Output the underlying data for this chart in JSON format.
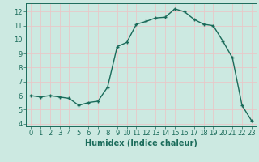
{
  "x": [
    0,
    1,
    2,
    3,
    4,
    5,
    6,
    7,
    8,
    9,
    10,
    11,
    12,
    13,
    14,
    15,
    16,
    17,
    18,
    19,
    20,
    21,
    22,
    23
  ],
  "y": [
    6.0,
    5.9,
    6.0,
    5.9,
    5.8,
    5.3,
    5.5,
    5.6,
    6.6,
    9.5,
    9.8,
    11.1,
    11.3,
    11.55,
    11.6,
    12.2,
    12.0,
    11.45,
    11.1,
    11.0,
    9.9,
    8.7,
    5.3,
    4.2
  ],
  "line_color": "#1a6b5a",
  "marker": "P",
  "marker_size": 2.5,
  "linewidth": 1.0,
  "xlabel": "Humidex (Indice chaleur)",
  "xlim": [
    -0.5,
    23.5
  ],
  "ylim": [
    3.8,
    12.6
  ],
  "yticks": [
    4,
    5,
    6,
    7,
    8,
    9,
    10,
    11,
    12
  ],
  "xticks": [
    0,
    1,
    2,
    3,
    4,
    5,
    6,
    7,
    8,
    9,
    10,
    11,
    12,
    13,
    14,
    15,
    16,
    17,
    18,
    19,
    20,
    21,
    22,
    23
  ],
  "bg_color": "#cce9e1",
  "grid_color": "#e8c8c8",
  "tick_color": "#1a6b5a",
  "label_color": "#1a6b5a",
  "xlabel_fontsize": 7,
  "tick_fontsize": 6
}
